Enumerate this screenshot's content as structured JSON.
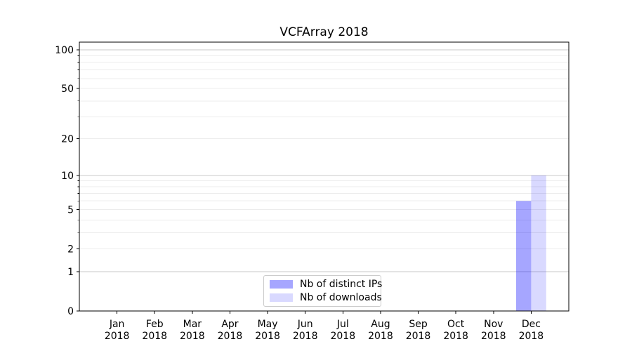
{
  "figure": {
    "background": "#ffffff"
  },
  "chart_data": {
    "type": "bar",
    "title": "VCFArray 2018",
    "categories": [
      "Jan",
      "Feb",
      "Mar",
      "Apr",
      "May",
      "Jun",
      "Jul",
      "Aug",
      "Sep",
      "Oct",
      "Nov",
      "Dec"
    ],
    "category_year": "2018",
    "series": [
      {
        "name": "Nb of distinct IPs",
        "color": "rgba(0,0,255,0.35)",
        "values": [
          0,
          0,
          0,
          0,
          0,
          0,
          0,
          0,
          0,
          0,
          0,
          6
        ]
      },
      {
        "name": "Nb of downloads",
        "color": "rgba(0,0,255,0.15)",
        "values": [
          0,
          0,
          0,
          0,
          0,
          0,
          0,
          0,
          0,
          0,
          0,
          10
        ]
      }
    ],
    "xlabel": "",
    "ylabel": "",
    "y_scale": "log1p",
    "ylim": [
      0,
      115
    ],
    "y_ticks_labeled": [
      0,
      1,
      2,
      5,
      10,
      20,
      50,
      100
    ],
    "y_grid_major": [
      1,
      10,
      100
    ],
    "y_grid_minor": [
      2,
      3,
      4,
      5,
      6,
      7,
      8,
      9,
      20,
      30,
      40,
      50,
      60,
      70,
      80,
      90
    ],
    "grid": "horizontal",
    "legend_position": "lower center",
    "colors": {
      "axis": "#000000",
      "text": "#000000",
      "major_grid": "#c9c9c9",
      "minor_grid": "#ececec"
    }
  }
}
